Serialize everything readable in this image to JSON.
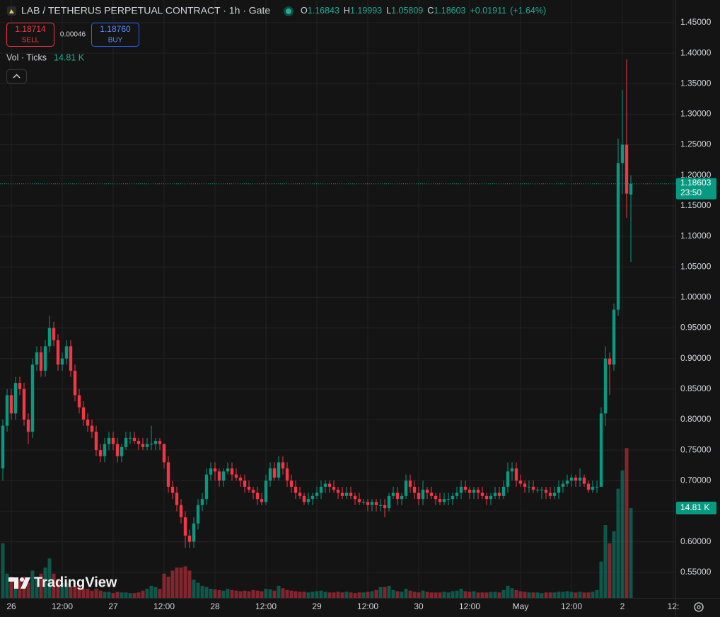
{
  "chart_data": {
    "type": "candlestick",
    "title": "LAB / TETHERUS PERPETUAL CONTRACT · 1h · Gate",
    "legend_labels": [
      "O",
      "H",
      "L",
      "C"
    ],
    "change": "+0.01911",
    "change_pct": "(+1.64%)",
    "sell_price": 1.18714,
    "sell_label": "SELL",
    "spread": 0.00046,
    "buy_price": "1.18760",
    "buy_label": "BUY",
    "indicator": "Vol · Ticks",
    "volume_label": "14.81 K",
    "countdown": "23:50",
    "watermark": "TradingView",
    "up_color": "#089981",
    "down_color": "#f23645",
    "grid": true,
    "ylim": [
      0.508,
      1.487
    ],
    "volume_ylim": [
      0,
      98540
    ],
    "xlim": [
      -0.667,
      158.5
    ],
    "yticks": [
      {
        "value": 0.55,
        "label": "0.55000"
      },
      {
        "value": 0.6,
        "label": "0.60000"
      },
      {
        "value": 0.65,
        "label": "0.65000"
      },
      {
        "value": 0.7,
        "label": "0.70000"
      },
      {
        "value": 0.75,
        "label": "0.75000"
      },
      {
        "value": 0.8,
        "label": "0.80000"
      },
      {
        "value": 0.85,
        "label": "0.85000"
      },
      {
        "value": 0.9,
        "label": "0.90000"
      },
      {
        "value": 0.95,
        "label": "0.95000"
      },
      {
        "value": 1.0,
        "label": "1.00000"
      },
      {
        "value": 1.05,
        "label": "1.05000"
      },
      {
        "value": 1.1,
        "label": "1.10000"
      },
      {
        "value": 1.15,
        "label": "1.15000"
      },
      {
        "value": 1.2,
        "label": "1.20000"
      },
      {
        "value": 1.25,
        "label": "1.25000"
      },
      {
        "value": 1.3,
        "label": "1.30000"
      },
      {
        "value": 1.35,
        "label": "1.35000"
      },
      {
        "value": 1.4,
        "label": "1.40000"
      },
      {
        "value": 1.45,
        "label": "1.45000"
      }
    ],
    "xticks": [
      {
        "value": 2,
        "label": "26"
      },
      {
        "value": 14,
        "label": "12:00"
      },
      {
        "value": 26,
        "label": "27"
      },
      {
        "value": 38,
        "label": "12:00"
      },
      {
        "value": 50,
        "label": "28"
      },
      {
        "value": 62,
        "label": "12:00"
      },
      {
        "value": 74,
        "label": "29"
      },
      {
        "value": 86,
        "label": "12:00"
      },
      {
        "value": 98,
        "label": "30"
      },
      {
        "value": 110,
        "label": "12:00"
      },
      {
        "value": 122,
        "label": "May"
      },
      {
        "value": 134,
        "label": "12:00"
      },
      {
        "value": 146,
        "label": "2"
      },
      {
        "value": 158,
        "label": "12:"
      }
    ],
    "ohlc": [
      [
        0.72,
        0.8,
        0.7,
        0.79
      ],
      [
        0.79,
        0.85,
        0.78,
        0.84
      ],
      [
        0.84,
        0.85,
        0.8,
        0.81
      ],
      [
        0.81,
        0.87,
        0.8,
        0.86
      ],
      [
        0.86,
        0.87,
        0.84,
        0.85
      ],
      [
        0.85,
        0.86,
        0.79,
        0.8
      ],
      [
        0.8,
        0.81,
        0.76,
        0.78
      ],
      [
        0.78,
        0.9,
        0.77,
        0.89
      ],
      [
        0.89,
        0.92,
        0.88,
        0.91
      ],
      [
        0.91,
        0.92,
        0.87,
        0.88
      ],
      [
        0.88,
        0.93,
        0.87,
        0.92
      ],
      [
        0.92,
        0.97,
        0.91,
        0.95
      ],
      [
        0.95,
        0.96,
        0.92,
        0.93
      ],
      [
        0.93,
        0.94,
        0.88,
        0.89
      ],
      [
        0.89,
        0.91,
        0.88,
        0.9
      ],
      [
        0.9,
        0.93,
        0.89,
        0.92
      ],
      [
        0.92,
        0.93,
        0.87,
        0.88
      ],
      [
        0.88,
        0.89,
        0.83,
        0.84
      ],
      [
        0.84,
        0.85,
        0.81,
        0.82
      ],
      [
        0.82,
        0.83,
        0.79,
        0.8
      ],
      [
        0.8,
        0.81,
        0.78,
        0.79
      ],
      [
        0.79,
        0.8,
        0.77,
        0.78
      ],
      [
        0.78,
        0.79,
        0.74,
        0.75
      ],
      [
        0.75,
        0.76,
        0.73,
        0.74
      ],
      [
        0.74,
        0.77,
        0.73,
        0.76
      ],
      [
        0.76,
        0.78,
        0.75,
        0.77
      ],
      [
        0.77,
        0.78,
        0.75,
        0.76
      ],
      [
        0.76,
        0.77,
        0.73,
        0.74
      ],
      [
        0.74,
        0.76,
        0.73,
        0.755
      ],
      [
        0.755,
        0.78,
        0.75,
        0.77
      ],
      [
        0.77,
        0.78,
        0.76,
        0.77
      ],
      [
        0.77,
        0.78,
        0.76,
        0.765
      ],
      [
        0.765,
        0.77,
        0.75,
        0.76
      ],
      [
        0.76,
        0.77,
        0.75,
        0.755
      ],
      [
        0.755,
        0.77,
        0.75,
        0.76
      ],
      [
        0.76,
        0.79,
        0.75,
        0.76
      ],
      [
        0.76,
        0.77,
        0.75,
        0.765
      ],
      [
        0.765,
        0.77,
        0.75,
        0.76
      ],
      [
        0.76,
        0.76,
        0.72,
        0.73
      ],
      [
        0.73,
        0.74,
        0.68,
        0.69
      ],
      [
        0.69,
        0.7,
        0.67,
        0.68
      ],
      [
        0.68,
        0.69,
        0.65,
        0.66
      ],
      [
        0.66,
        0.67,
        0.63,
        0.64
      ],
      [
        0.64,
        0.65,
        0.59,
        0.61
      ],
      [
        0.61,
        0.62,
        0.59,
        0.6
      ],
      [
        0.6,
        0.64,
        0.59,
        0.63
      ],
      [
        0.63,
        0.67,
        0.62,
        0.66
      ],
      [
        0.66,
        0.68,
        0.65,
        0.67
      ],
      [
        0.67,
        0.72,
        0.66,
        0.71
      ],
      [
        0.71,
        0.73,
        0.7,
        0.72
      ],
      [
        0.72,
        0.73,
        0.7,
        0.715
      ],
      [
        0.715,
        0.72,
        0.69,
        0.7
      ],
      [
        0.7,
        0.72,
        0.69,
        0.715
      ],
      [
        0.715,
        0.73,
        0.71,
        0.72
      ],
      [
        0.72,
        0.73,
        0.7,
        0.71
      ],
      [
        0.71,
        0.72,
        0.7,
        0.705
      ],
      [
        0.705,
        0.71,
        0.69,
        0.7
      ],
      [
        0.7,
        0.71,
        0.68,
        0.69
      ],
      [
        0.69,
        0.7,
        0.68,
        0.685
      ],
      [
        0.685,
        0.69,
        0.67,
        0.68
      ],
      [
        0.68,
        0.69,
        0.66,
        0.67
      ],
      [
        0.67,
        0.68,
        0.66,
        0.665
      ],
      [
        0.665,
        0.71,
        0.66,
        0.7
      ],
      [
        0.7,
        0.73,
        0.69,
        0.72
      ],
      [
        0.72,
        0.73,
        0.7,
        0.705
      ],
      [
        0.705,
        0.74,
        0.7,
        0.73
      ],
      [
        0.73,
        0.74,
        0.71,
        0.72
      ],
      [
        0.72,
        0.73,
        0.69,
        0.7
      ],
      [
        0.7,
        0.71,
        0.68,
        0.69
      ],
      [
        0.69,
        0.7,
        0.67,
        0.68
      ],
      [
        0.68,
        0.69,
        0.67,
        0.675
      ],
      [
        0.675,
        0.68,
        0.66,
        0.665
      ],
      [
        0.665,
        0.68,
        0.66,
        0.67
      ],
      [
        0.67,
        0.68,
        0.66,
        0.675
      ],
      [
        0.675,
        0.69,
        0.67,
        0.68
      ],
      [
        0.68,
        0.7,
        0.67,
        0.69
      ],
      [
        0.69,
        0.7,
        0.68,
        0.695
      ],
      [
        0.695,
        0.7,
        0.68,
        0.69
      ],
      [
        0.69,
        0.7,
        0.68,
        0.685
      ],
      [
        0.685,
        0.69,
        0.67,
        0.68
      ],
      [
        0.68,
        0.69,
        0.67,
        0.675
      ],
      [
        0.675,
        0.69,
        0.67,
        0.68
      ],
      [
        0.68,
        0.69,
        0.67,
        0.675
      ],
      [
        0.675,
        0.68,
        0.66,
        0.67
      ],
      [
        0.67,
        0.68,
        0.66,
        0.665
      ],
      [
        0.665,
        0.67,
        0.66,
        0.665
      ],
      [
        0.665,
        0.67,
        0.65,
        0.66
      ],
      [
        0.66,
        0.67,
        0.65,
        0.665
      ],
      [
        0.665,
        0.67,
        0.65,
        0.66
      ],
      [
        0.66,
        0.67,
        0.65,
        0.66
      ],
      [
        0.66,
        0.67,
        0.64,
        0.655
      ],
      [
        0.655,
        0.68,
        0.65,
        0.675
      ],
      [
        0.675,
        0.69,
        0.67,
        0.68
      ],
      [
        0.68,
        0.69,
        0.66,
        0.67
      ],
      [
        0.67,
        0.68,
        0.66,
        0.675
      ],
      [
        0.675,
        0.71,
        0.67,
        0.7
      ],
      [
        0.7,
        0.71,
        0.68,
        0.69
      ],
      [
        0.69,
        0.7,
        0.67,
        0.68
      ],
      [
        0.68,
        0.69,
        0.66,
        0.67
      ],
      [
        0.67,
        0.7,
        0.66,
        0.685
      ],
      [
        0.685,
        0.69,
        0.67,
        0.68
      ],
      [
        0.68,
        0.69,
        0.67,
        0.675
      ],
      [
        0.675,
        0.68,
        0.66,
        0.67
      ],
      [
        0.67,
        0.68,
        0.66,
        0.665
      ],
      [
        0.665,
        0.68,
        0.66,
        0.67
      ],
      [
        0.67,
        0.68,
        0.66,
        0.67
      ],
      [
        0.67,
        0.68,
        0.66,
        0.675
      ],
      [
        0.675,
        0.69,
        0.67,
        0.68
      ],
      [
        0.68,
        0.7,
        0.67,
        0.69
      ],
      [
        0.69,
        0.7,
        0.68,
        0.685
      ],
      [
        0.685,
        0.69,
        0.67,
        0.68
      ],
      [
        0.68,
        0.69,
        0.67,
        0.685
      ],
      [
        0.685,
        0.69,
        0.67,
        0.68
      ],
      [
        0.68,
        0.69,
        0.67,
        0.675
      ],
      [
        0.675,
        0.68,
        0.66,
        0.67
      ],
      [
        0.67,
        0.68,
        0.66,
        0.675
      ],
      [
        0.675,
        0.69,
        0.67,
        0.68
      ],
      [
        0.68,
        0.69,
        0.67,
        0.675
      ],
      [
        0.675,
        0.7,
        0.67,
        0.69
      ],
      [
        0.69,
        0.73,
        0.68,
        0.715
      ],
      [
        0.715,
        0.73,
        0.7,
        0.72
      ],
      [
        0.72,
        0.73,
        0.69,
        0.7
      ],
      [
        0.7,
        0.71,
        0.69,
        0.695
      ],
      [
        0.695,
        0.7,
        0.68,
        0.69
      ],
      [
        0.69,
        0.7,
        0.68,
        0.69
      ],
      [
        0.69,
        0.7,
        0.68,
        0.685
      ],
      [
        0.685,
        0.69,
        0.68,
        0.685
      ],
      [
        0.685,
        0.69,
        0.67,
        0.685
      ],
      [
        0.685,
        0.69,
        0.67,
        0.68
      ],
      [
        0.68,
        0.69,
        0.67,
        0.675
      ],
      [
        0.675,
        0.69,
        0.67,
        0.68
      ],
      [
        0.68,
        0.7,
        0.67,
        0.69
      ],
      [
        0.69,
        0.7,
        0.68,
        0.695
      ],
      [
        0.695,
        0.71,
        0.69,
        0.7
      ],
      [
        0.7,
        0.71,
        0.69,
        0.705
      ],
      [
        0.705,
        0.71,
        0.69,
        0.7
      ],
      [
        0.7,
        0.72,
        0.69,
        0.705
      ],
      [
        0.705,
        0.71,
        0.69,
        0.695
      ],
      [
        0.695,
        0.7,
        0.68,
        0.685
      ],
      [
        0.685,
        0.7,
        0.68,
        0.69
      ],
      [
        0.69,
        0.7,
        0.68,
        0.69
      ],
      [
        0.69,
        0.82,
        0.69,
        0.81
      ],
      [
        0.81,
        0.92,
        0.79,
        0.9
      ],
      [
        0.9,
        0.91,
        0.84,
        0.89
      ],
      [
        0.89,
        0.99,
        0.88,
        0.98
      ],
      [
        0.98,
        1.26,
        0.97,
        1.22
      ],
      [
        1.22,
        1.34,
        1.17,
        1.25
      ],
      [
        1.25,
        1.39,
        1.13,
        1.17
      ],
      [
        1.16843,
        1.19993,
        1.05809,
        1.18603
      ]
    ],
    "volumes": [
      9000,
      4000,
      3500,
      3000,
      3000,
      3500,
      2500,
      4500,
      3500,
      4000,
      5000,
      6500,
      4000,
      3000,
      2500,
      2500,
      2000,
      2000,
      1800,
      1500,
      1500,
      1200,
      1500,
      1200,
      1000,
      1000,
      800,
      1000,
      900,
      900,
      800,
      800,
      900,
      1200,
      1500,
      2000,
      1800,
      1500,
      4000,
      3500,
      4500,
      5000,
      5000,
      5200,
      4500,
      3000,
      2500,
      2000,
      1800,
      1500,
      1400,
      1300,
      1200,
      1500,
      1300,
      1200,
      1100,
      1200,
      1100,
      1300,
      1200,
      1100,
      1500,
      1400,
      1200,
      2000,
      1600,
      1300,
      1200,
      1100,
      1000,
      1000,
      900,
      1000,
      1100,
      1200,
      1000,
      900,
      900,
      1000,
      900,
      1000,
      900,
      800,
      900,
      900,
      1000,
      1100,
      1300,
      1800,
      1800,
      2000,
      1300,
      1100,
      1000,
      1500,
      1200,
      1000,
      900,
      1200,
      1000,
      900,
      900,
      900,
      1000,
      900,
      1100,
      1200,
      1500,
      1100,
      1000,
      1100,
      900,
      900,
      900,
      1000,
      1000,
      900,
      1300,
      2000,
      1600,
      1300,
      1100,
      1000,
      900,
      900,
      900,
      800,
      900,
      900,
      900,
      1000,
      1000,
      1100,
      1000,
      900,
      1000,
      900,
      900,
      1000,
      1300,
      6000,
      12000,
      9000,
      11000,
      18000,
      21000,
      24700,
      14810
    ]
  }
}
